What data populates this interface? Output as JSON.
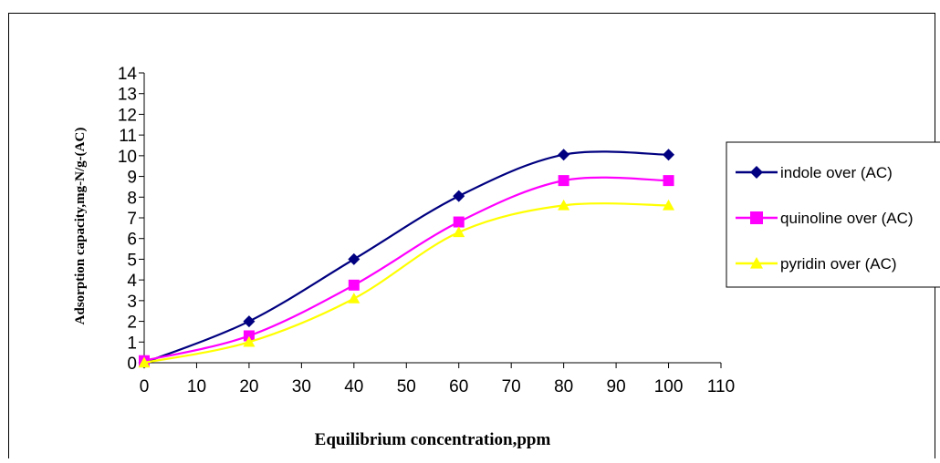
{
  "chart_data": {
    "type": "line",
    "title": "",
    "xlabel": "Equilibrium concentration,ppm",
    "ylabel": "Adsorption capacity,mg-N/g-(AC)",
    "xlim": [
      0,
      110
    ],
    "ylim": [
      0,
      14
    ],
    "x_ticks": [
      0,
      10,
      20,
      30,
      40,
      50,
      60,
      70,
      80,
      90,
      100,
      110
    ],
    "y_ticks": [
      0,
      1,
      2,
      3,
      4,
      5,
      6,
      7,
      8,
      9,
      10,
      11,
      12,
      13,
      14
    ],
    "grid": false,
    "smooth": true,
    "legend_position": "right",
    "series": [
      {
        "name": "indole over (AC)",
        "color": "#000080",
        "marker": "diamond",
        "x": [
          0,
          20,
          40,
          60,
          80,
          100
        ],
        "y": [
          0,
          2.0,
          5.0,
          8.05,
          10.05,
          10.05
        ]
      },
      {
        "name": "quinoline over (AC)",
        "color": "#ff00ff",
        "marker": "square",
        "x": [
          0,
          20,
          40,
          60,
          80,
          100
        ],
        "y": [
          0.1,
          1.3,
          3.75,
          6.8,
          8.8,
          8.8
        ]
      },
      {
        "name": "pyridin over (AC)",
        "color": "#ffff00",
        "marker": "triangle",
        "x": [
          0,
          20,
          40,
          60,
          80,
          100
        ],
        "y": [
          0,
          1.0,
          3.1,
          6.3,
          7.6,
          7.6
        ]
      }
    ]
  }
}
